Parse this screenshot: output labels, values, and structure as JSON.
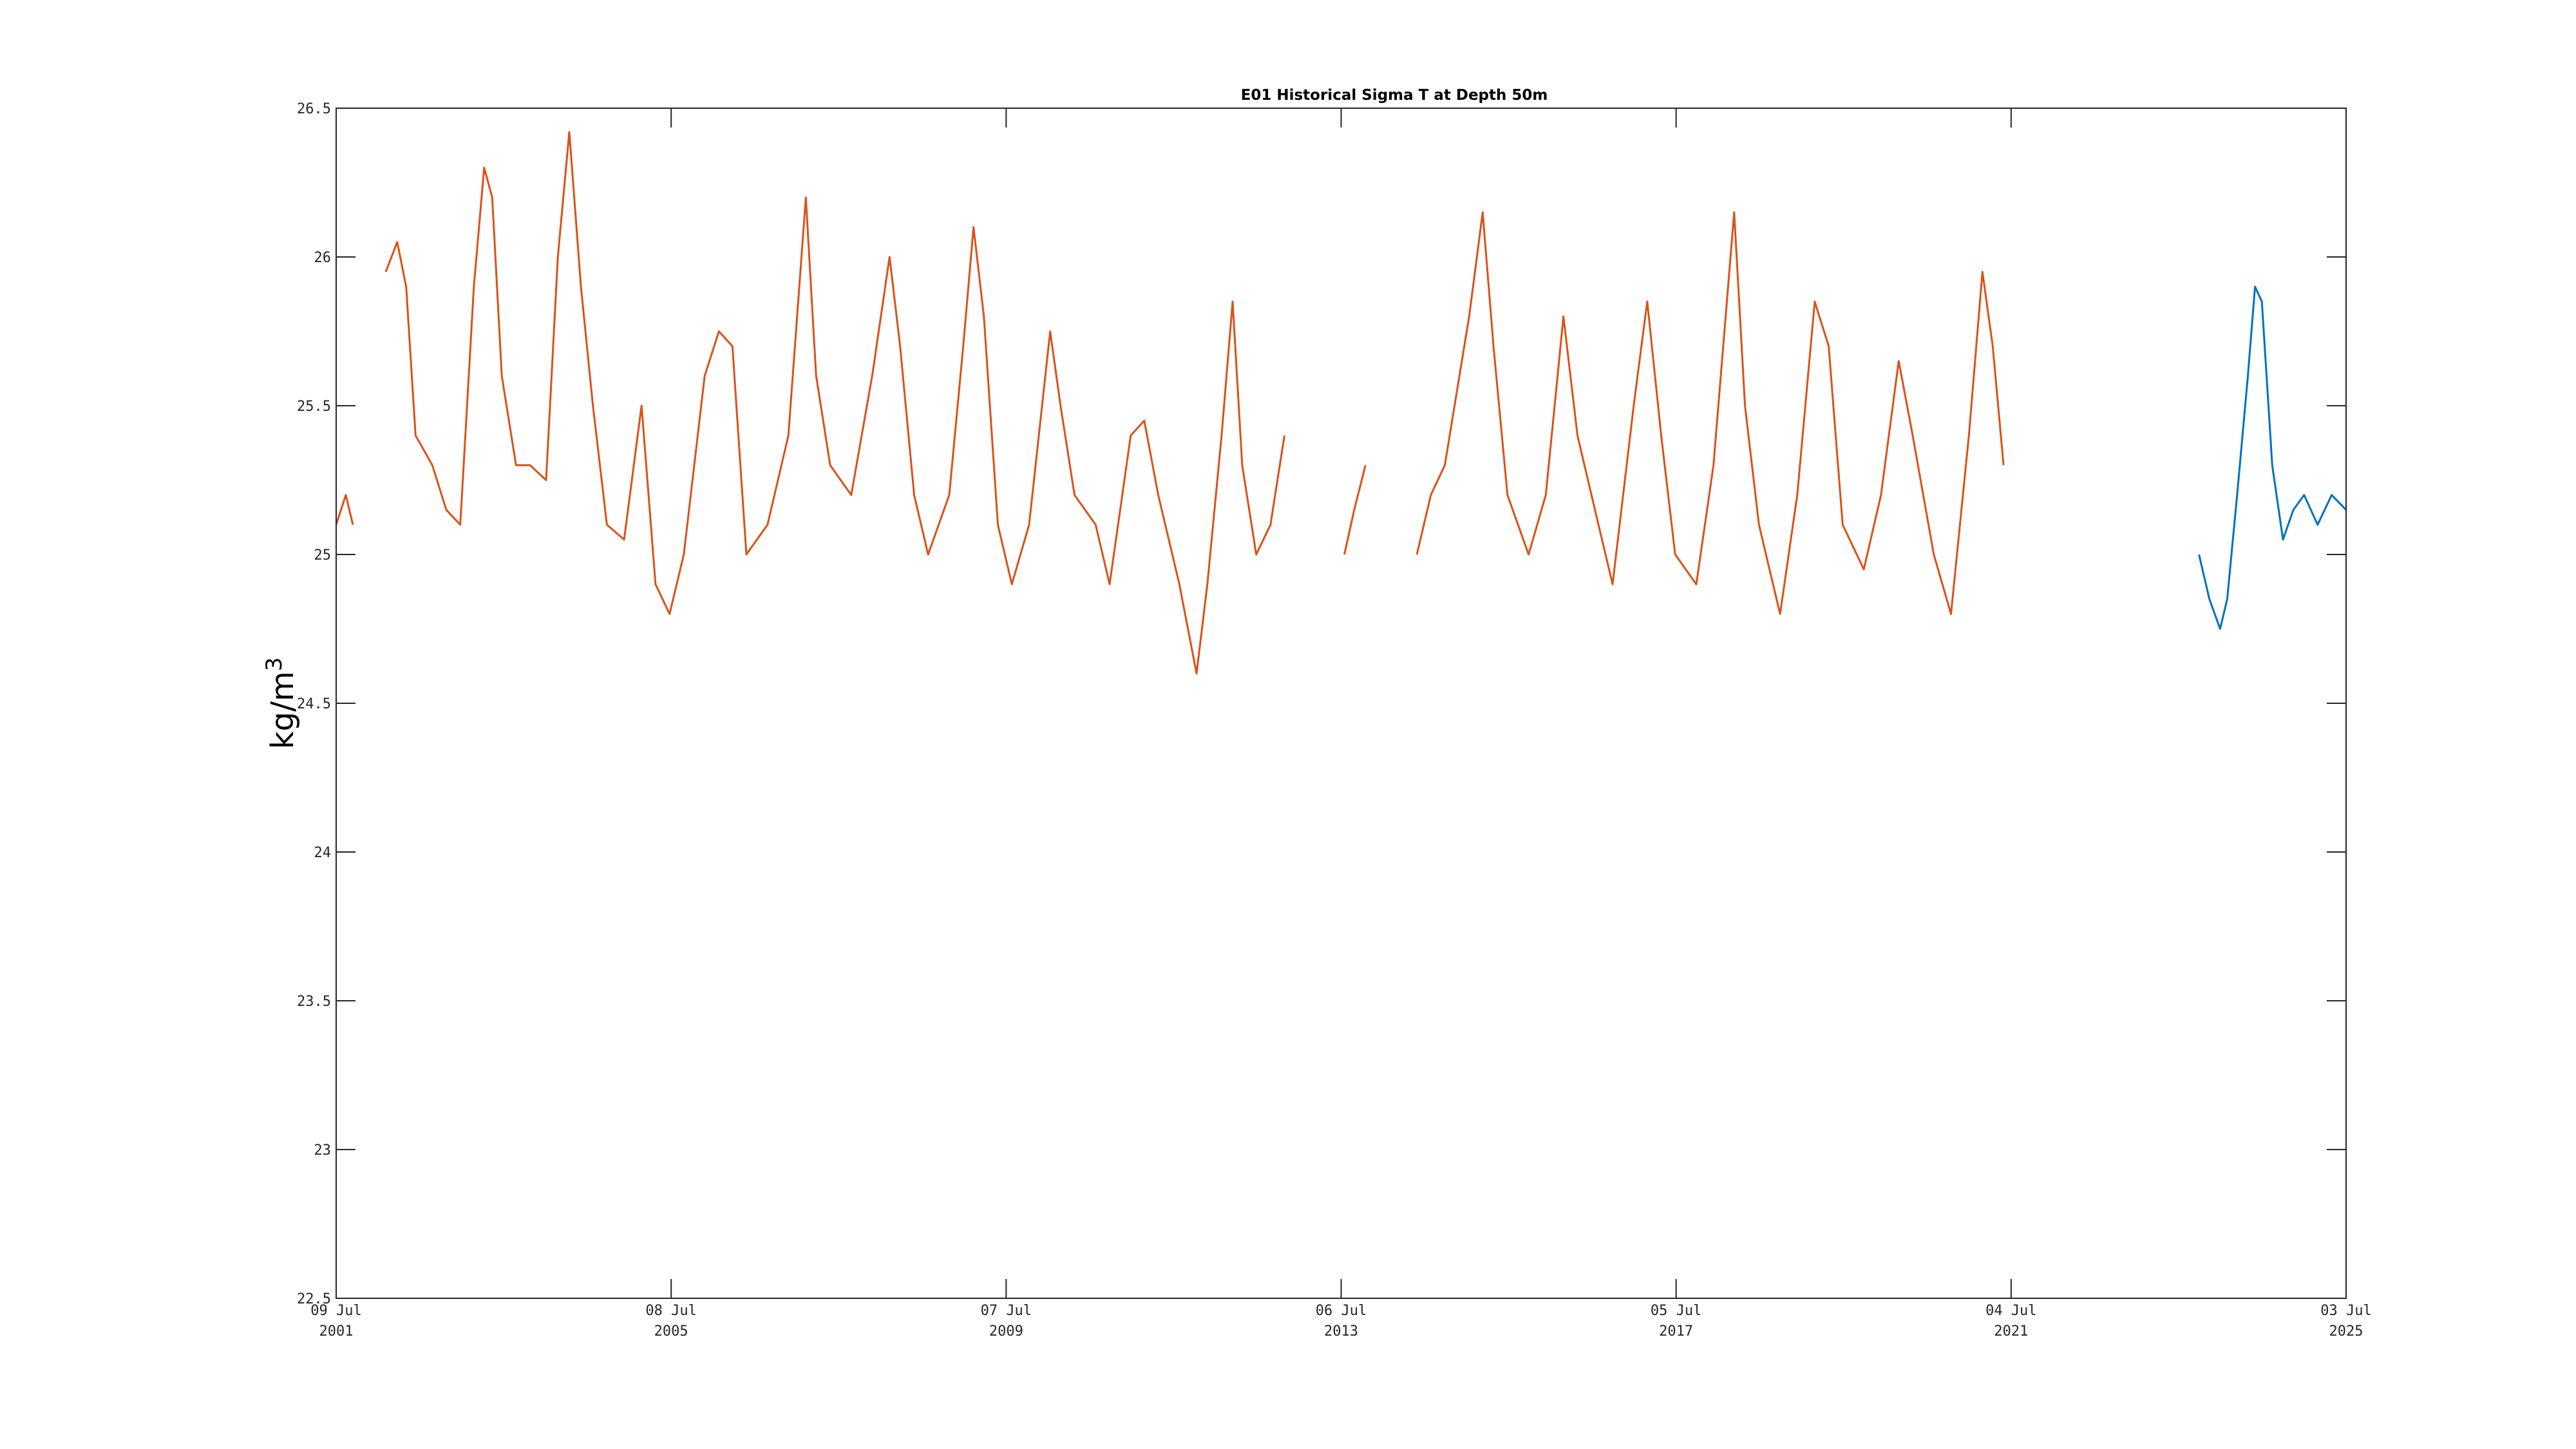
{
  "chart_data": {
    "type": "line",
    "title": "E01 Historical Sigma T at Depth 50m",
    "ylabel": "kg/m",
    "ylabel_superscript": "3",
    "xlim": [
      "2001-07-09",
      "2025-07-03"
    ],
    "ylim": [
      22.5,
      26.5
    ],
    "grid": false,
    "x_ticks": [
      {
        "date": "2001-07-09",
        "day_month": "09 Jul",
        "year": "2001"
      },
      {
        "date": "2005-07-08",
        "day_month": "08 Jul",
        "year": "2005"
      },
      {
        "date": "2009-07-07",
        "day_month": "07 Jul",
        "year": "2009"
      },
      {
        "date": "2013-07-06",
        "day_month": "06 Jul",
        "year": "2013"
      },
      {
        "date": "2017-07-05",
        "day_month": "05 Jul",
        "year": "2017"
      },
      {
        "date": "2021-07-04",
        "day_month": "04 Jul",
        "year": "2021"
      },
      {
        "date": "2025-07-03",
        "day_month": "03 Jul",
        "year": "2025"
      }
    ],
    "y_ticks": [
      "22.5",
      "23",
      "23.5",
      "24",
      "24.5",
      "25",
      "25.5",
      "26",
      "26.5"
    ],
    "series": [
      {
        "color": "#D95319",
        "segments": [
          [
            {
              "x": "2001-07-09",
              "y": 25.1
            },
            {
              "x": "2001-08-20",
              "y": 25.2
            },
            {
              "x": "2001-09-20",
              "y": 25.1
            }
          ],
          [
            {
              "x": "2002-02-10",
              "y": 25.95
            },
            {
              "x": "2002-04-01",
              "y": 26.05
            },
            {
              "x": "2002-05-10",
              "y": 25.9
            },
            {
              "x": "2002-06-20",
              "y": 25.4
            },
            {
              "x": "2002-09-01",
              "y": 25.3
            },
            {
              "x": "2002-11-01",
              "y": 25.15
            },
            {
              "x": "2003-01-01",
              "y": 25.1
            },
            {
              "x": "2003-03-01",
              "y": 25.9
            },
            {
              "x": "2003-04-15",
              "y": 26.3
            },
            {
              "x": "2003-05-20",
              "y": 26.2
            },
            {
              "x": "2003-07-01",
              "y": 25.6
            },
            {
              "x": "2003-09-01",
              "y": 25.3
            },
            {
              "x": "2003-11-01",
              "y": 25.3
            },
            {
              "x": "2004-01-10",
              "y": 25.25
            },
            {
              "x": "2004-03-01",
              "y": 26.0
            },
            {
              "x": "2004-04-20",
              "y": 26.42
            },
            {
              "x": "2004-06-10",
              "y": 25.9
            },
            {
              "x": "2004-08-01",
              "y": 25.5
            },
            {
              "x": "2004-10-01",
              "y": 25.1
            },
            {
              "x": "2004-12-15",
              "y": 25.05
            },
            {
              "x": "2005-03-01",
              "y": 25.5
            },
            {
              "x": "2005-05-01",
              "y": 24.9
            },
            {
              "x": "2005-07-01",
              "y": 24.8
            },
            {
              "x": "2005-09-01",
              "y": 25.0
            },
            {
              "x": "2005-12-01",
              "y": 25.6
            },
            {
              "x": "2006-02-01",
              "y": 25.75
            },
            {
              "x": "2006-04-01",
              "y": 25.7
            },
            {
              "x": "2006-06-01",
              "y": 25.0
            },
            {
              "x": "2006-09-01",
              "y": 25.1
            },
            {
              "x": "2006-12-01",
              "y": 25.4
            },
            {
              "x": "2007-02-15",
              "y": 26.2
            },
            {
              "x": "2007-04-01",
              "y": 25.6
            },
            {
              "x": "2007-06-01",
              "y": 25.3
            },
            {
              "x": "2007-09-01",
              "y": 25.2
            },
            {
              "x": "2007-12-01",
              "y": 25.6
            },
            {
              "x": "2008-02-15",
              "y": 26.0
            },
            {
              "x": "2008-04-01",
              "y": 25.7
            },
            {
              "x": "2008-06-01",
              "y": 25.2
            },
            {
              "x": "2008-08-01",
              "y": 25.0
            },
            {
              "x": "2008-11-01",
              "y": 25.2
            },
            {
              "x": "2009-01-01",
              "y": 25.7
            },
            {
              "x": "2009-02-15",
              "y": 26.1
            },
            {
              "x": "2009-04-01",
              "y": 25.8
            },
            {
              "x": "2009-06-01",
              "y": 25.1
            },
            {
              "x": "2009-08-01",
              "y": 24.9
            },
            {
              "x": "2009-10-15",
              "y": 25.1
            },
            {
              "x": "2010-01-15",
              "y": 25.75
            },
            {
              "x": "2010-03-01",
              "y": 25.5
            },
            {
              "x": "2010-05-01",
              "y": 25.2
            },
            {
              "x": "2010-08-01",
              "y": 25.1
            },
            {
              "x": "2010-10-01",
              "y": 24.9
            },
            {
              "x": "2011-01-01",
              "y": 25.4
            },
            {
              "x": "2011-03-01",
              "y": 25.45
            },
            {
              "x": "2011-05-01",
              "y": 25.2
            },
            {
              "x": "2011-08-01",
              "y": 24.9
            },
            {
              "x": "2011-10-15",
              "y": 24.6
            },
            {
              "x": "2011-12-01",
              "y": 24.9
            },
            {
              "x": "2012-02-01",
              "y": 25.4
            },
            {
              "x": "2012-03-20",
              "y": 25.85
            },
            {
              "x": "2012-05-01",
              "y": 25.3
            },
            {
              "x": "2012-07-01",
              "y": 25.0
            },
            {
              "x": "2012-09-01",
              "y": 25.1
            },
            {
              "x": "2012-11-01",
              "y": 25.4
            }
          ],
          [
            {
              "x": "2013-07-20",
              "y": 25.0
            },
            {
              "x": "2013-09-01",
              "y": 25.15
            },
            {
              "x": "2013-10-20",
              "y": 25.3
            }
          ],
          [
            {
              "x": "2014-06-01",
              "y": 25.0
            },
            {
              "x": "2014-08-01",
              "y": 25.2
            },
            {
              "x": "2014-10-01",
              "y": 25.3
            },
            {
              "x": "2015-01-15",
              "y": 25.8
            },
            {
              "x": "2015-03-15",
              "y": 26.15
            },
            {
              "x": "2015-05-01",
              "y": 25.7
            },
            {
              "x": "2015-07-01",
              "y": 25.2
            },
            {
              "x": "2015-10-01",
              "y": 25.0
            },
            {
              "x": "2015-12-15",
              "y": 25.2
            },
            {
              "x": "2016-03-01",
              "y": 25.8
            },
            {
              "x": "2016-05-01",
              "y": 25.4
            },
            {
              "x": "2016-07-01",
              "y": 25.2
            },
            {
              "x": "2016-10-01",
              "y": 24.9
            },
            {
              "x": "2017-01-01",
              "y": 25.5
            },
            {
              "x": "2017-03-01",
              "y": 25.85
            },
            {
              "x": "2017-05-01",
              "y": 25.4
            },
            {
              "x": "2017-07-01",
              "y": 25.0
            },
            {
              "x": "2017-10-01",
              "y": 24.9
            },
            {
              "x": "2017-12-15",
              "y": 25.3
            },
            {
              "x": "2018-03-15",
              "y": 26.15
            },
            {
              "x": "2018-05-01",
              "y": 25.5
            },
            {
              "x": "2018-07-01",
              "y": 25.1
            },
            {
              "x": "2018-10-01",
              "y": 24.8
            },
            {
              "x": "2018-12-15",
              "y": 25.2
            },
            {
              "x": "2019-03-01",
              "y": 25.85
            },
            {
              "x": "2019-05-01",
              "y": 25.7
            },
            {
              "x": "2019-07-01",
              "y": 25.1
            },
            {
              "x": "2019-10-01",
              "y": 24.95
            },
            {
              "x": "2019-12-15",
              "y": 25.2
            },
            {
              "x": "2020-03-01",
              "y": 25.65
            },
            {
              "x": "2020-05-01",
              "y": 25.4
            },
            {
              "x": "2020-08-01",
              "y": 25.0
            },
            {
              "x": "2020-10-15",
              "y": 24.8
            },
            {
              "x": "2021-01-01",
              "y": 25.4
            },
            {
              "x": "2021-03-01",
              "y": 25.95
            },
            {
              "x": "2021-04-15",
              "y": 25.7
            },
            {
              "x": "2021-06-01",
              "y": 25.3
            }
          ]
        ]
      },
      {
        "color": "#0072BD",
        "segments": [
          [
            {
              "x": "2023-10-01",
              "y": 25.0
            },
            {
              "x": "2023-11-15",
              "y": 24.85
            },
            {
              "x": "2024-01-01",
              "y": 24.75
            },
            {
              "x": "2024-02-01",
              "y": 24.85
            },
            {
              "x": "2024-03-15",
              "y": 25.2
            },
            {
              "x": "2024-05-01",
              "y": 25.6
            },
            {
              "x": "2024-06-01",
              "y": 25.9
            },
            {
              "x": "2024-07-01",
              "y": 25.85
            },
            {
              "x": "2024-08-15",
              "y": 25.3
            },
            {
              "x": "2024-10-01",
              "y": 25.05
            },
            {
              "x": "2024-11-15",
              "y": 25.15
            },
            {
              "x": "2025-01-01",
              "y": 25.2
            },
            {
              "x": "2025-03-01",
              "y": 25.1
            },
            {
              "x": "2025-05-01",
              "y": 25.2
            },
            {
              "x": "2025-07-03",
              "y": 25.15
            }
          ]
        ]
      }
    ]
  }
}
